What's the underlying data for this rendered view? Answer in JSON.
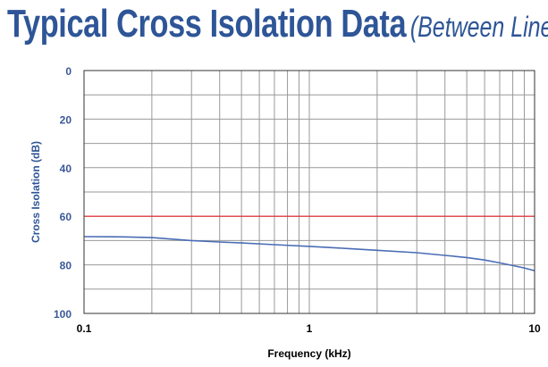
{
  "chart_data": {
    "type": "line",
    "title": "Typical Cross Isolation Data",
    "subtitle": "(Between Lines)",
    "xlabel": "Frequency (kHz)",
    "ylabel": "Cross Isolation (dB)",
    "x_scale": "log",
    "xlim": [
      0.1,
      10
    ],
    "ylim": [
      0,
      100
    ],
    "y_inverted": true,
    "x_ticks": [
      "0.1",
      "1",
      "10"
    ],
    "y_ticks": [
      "0",
      "20",
      "40",
      "60",
      "80",
      "100"
    ],
    "grid": true,
    "reference_line": {
      "y": 60,
      "color": "#e8242a"
    },
    "series": [
      {
        "color": "#4a6db5",
        "x": [
          0.1,
          0.15,
          0.2,
          0.3,
          0.4,
          0.5,
          0.7,
          1,
          1.5,
          2,
          3,
          4,
          5,
          6,
          7,
          8,
          9,
          10
        ],
        "y": [
          68.4,
          68.5,
          68.8,
          70,
          70.6,
          71,
          71.7,
          72.4,
          73.3,
          74,
          75,
          76.1,
          77,
          78,
          79.2,
          80.3,
          81.3,
          82.4
        ]
      }
    ],
    "colors": {
      "title": "#2e5597",
      "tick_labels": "#3a5898",
      "ylabel": "#2e5597",
      "xlabel": "#000000",
      "grid": "#999999"
    }
  }
}
